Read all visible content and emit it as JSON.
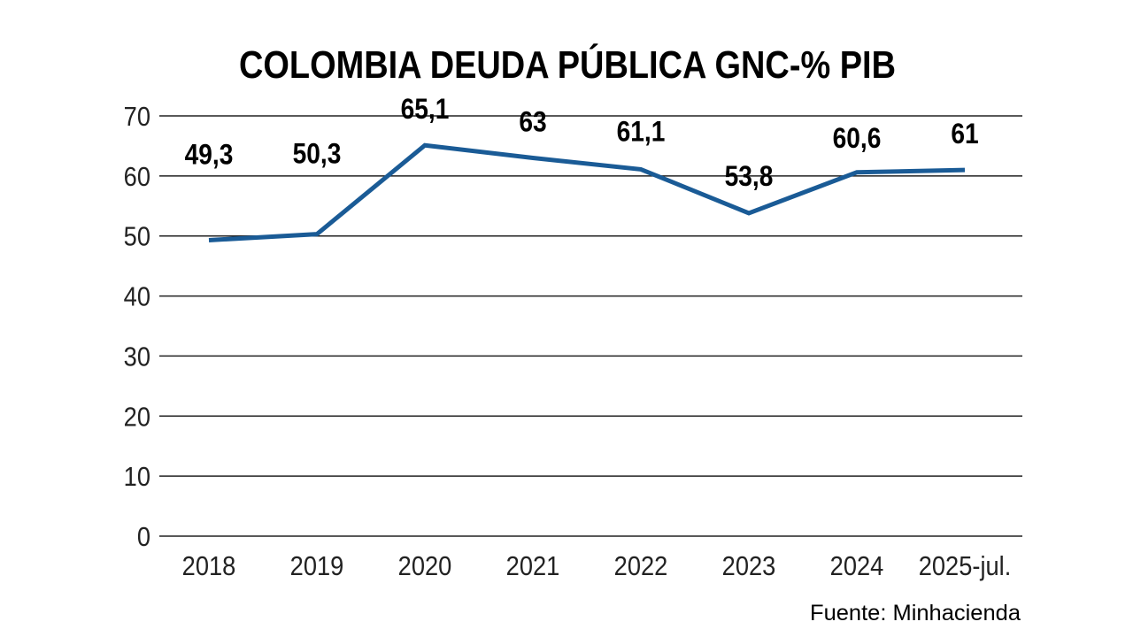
{
  "chart_data": {
    "type": "line",
    "title": "COLOMBIA DEUDA PÚBLICA GNC-% PIB",
    "source": "Fuente: Minhacienda",
    "categories": [
      "2018",
      "2019",
      "2020",
      "2021",
      "2022",
      "2023",
      "2024",
      "2025-jul."
    ],
    "values": [
      49.3,
      50.3,
      65.1,
      63,
      61.1,
      53.8,
      60.6,
      61
    ],
    "data_labels": [
      "49,3",
      "50,3",
      "65,1",
      "63",
      "61,1",
      "53,8",
      "60,6",
      "61"
    ],
    "yticks": [
      0,
      10,
      20,
      30,
      40,
      50,
      60,
      70
    ],
    "ylim": [
      0,
      70
    ],
    "grid": true,
    "line_color": "#1a5b96"
  }
}
